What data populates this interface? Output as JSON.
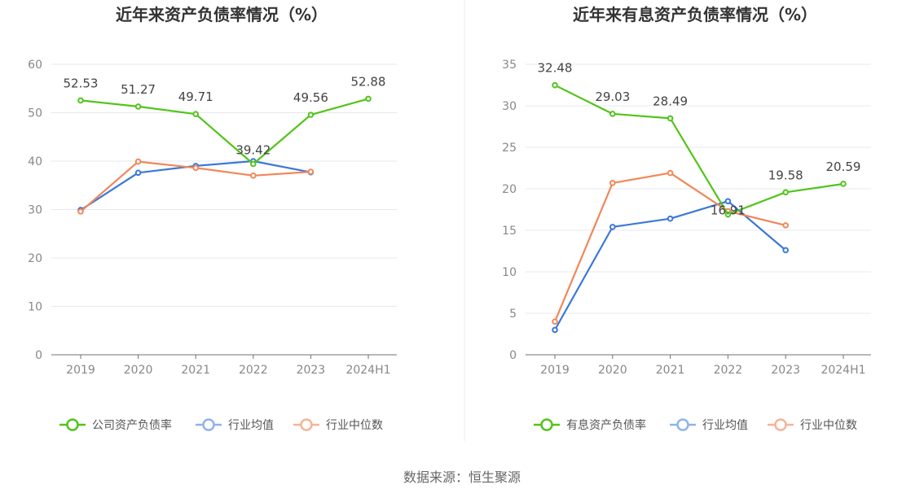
{
  "chart_data": [
    {
      "type": "line",
      "title": "近年来资产负债率情况（%）",
      "categories": [
        "2019",
        "2020",
        "2021",
        "2022",
        "2023",
        "2024H1"
      ],
      "ylim": [
        0,
        60
      ],
      "yticks": [
        0,
        10,
        20,
        30,
        40,
        50,
        60
      ],
      "grid": true,
      "legend_position": "bottom",
      "series": [
        {
          "name": "公司资产负债率",
          "color": "#52c41a",
          "values": [
            52.53,
            51.27,
            49.71,
            39.42,
            49.56,
            52.88
          ],
          "labels": [
            "52.53",
            "51.27",
            "49.71",
            "39.42",
            "49.56",
            "52.88"
          ]
        },
        {
          "name": "行业均值",
          "color": "#3b78d8",
          "values": [
            29.9,
            37.6,
            39.0,
            40.0,
            37.7,
            null
          ]
        },
        {
          "name": "行业中位数",
          "color": "#f0875a",
          "values": [
            29.6,
            39.9,
            38.6,
            37.0,
            37.8,
            null
          ]
        }
      ]
    },
    {
      "type": "line",
      "title": "近年来有息资产负债率情况（%）",
      "categories": [
        "2019",
        "2020",
        "2021",
        "2022",
        "2023",
        "2024H1"
      ],
      "ylim": [
        0,
        35
      ],
      "yticks": [
        0,
        5,
        10,
        15,
        20,
        25,
        30,
        35
      ],
      "grid": true,
      "legend_position": "bottom",
      "series": [
        {
          "name": "有息资产负债率",
          "color": "#52c41a",
          "values": [
            32.48,
            29.03,
            28.49,
            16.91,
            19.58,
            20.59
          ],
          "labels": [
            "32.48",
            "29.03",
            "28.49",
            "16.91",
            "19.58",
            "20.59"
          ]
        },
        {
          "name": "行业均值",
          "color": "#3b78d8",
          "values": [
            3.0,
            15.4,
            16.4,
            18.5,
            12.6,
            null
          ]
        },
        {
          "name": "行业中位数",
          "color": "#f0875a",
          "values": [
            4.0,
            20.7,
            21.9,
            17.3,
            15.6,
            null
          ]
        }
      ]
    }
  ],
  "source_text": "数据来源：恒生聚源"
}
